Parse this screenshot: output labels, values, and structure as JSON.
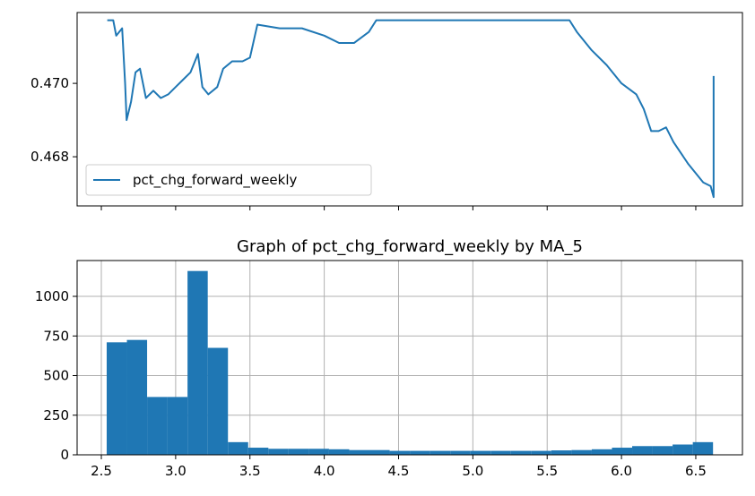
{
  "chart_data": [
    {
      "type": "line",
      "xlim": [
        2.337,
        6.814
      ],
      "ylim": [
        0.46666,
        0.47193
      ],
      "yticks": [
        {
          "value": 0.47,
          "label": "0.470"
        },
        0.468
      ],
      "legend": "lower left",
      "series": [
        {
          "name": "pct_chg_forward_weekly",
          "color": "#1f77b4",
          "x": [
            2.54,
            2.58,
            2.6,
            2.62,
            2.64,
            2.66,
            2.67,
            2.7,
            2.73,
            2.76,
            2.8,
            2.85,
            2.9,
            2.95,
            3.0,
            3.05,
            3.1,
            3.15,
            3.18,
            3.22,
            3.28,
            3.32,
            3.38,
            3.45,
            3.5,
            3.55,
            3.7,
            3.85,
            4.0,
            4.1,
            4.2,
            4.3,
            4.35,
            5.0,
            5.65,
            5.7,
            5.8,
            5.9,
            6.0,
            6.1,
            6.15,
            6.2,
            6.25,
            6.3,
            6.35,
            6.45,
            6.55,
            6.6,
            6.62,
            6.62
          ],
          "values": [
            0.47172,
            0.47172,
            0.4713,
            0.4714,
            0.4715,
            0.47,
            0.469,
            0.4695,
            0.4703,
            0.4704,
            0.4696,
            0.4698,
            0.4696,
            0.4697,
            0.4699,
            0.4701,
            0.4703,
            0.4708,
            0.4699,
            0.4697,
            0.4699,
            0.4704,
            0.4706,
            0.4706,
            0.4707,
            0.4716,
            0.4715,
            0.4715,
            0.4713,
            0.4711,
            0.4711,
            0.4714,
            0.47172,
            0.47172,
            0.47172,
            0.4714,
            0.4709,
            0.4705,
            0.47,
            0.4697,
            0.4693,
            0.4687,
            0.4687,
            0.4688,
            0.4684,
            0.4678,
            0.4673,
            0.4672,
            0.4669,
            0.4702
          ]
        }
      ]
    },
    {
      "type": "histogram",
      "title": "Graph of pct_chg_forward_weekly by MA_5",
      "color": "#1f77b4",
      "grid": true,
      "xlim": [
        2.337,
        6.814
      ],
      "ylim": [
        0,
        1226
      ],
      "xticks": [
        2.5,
        {
          "value": 3,
          "label": "3.0"
        },
        3.5,
        {
          "value": 4,
          "label": "4.0"
        },
        4.5,
        {
          "value": 5,
          "label": "5.0"
        },
        5.5,
        {
          "value": 6,
          "label": "6.0"
        },
        6.5
      ],
      "yticks": [
        0,
        250,
        500,
        750,
        1000
      ],
      "bins": [
        2.536,
        2.672,
        2.808,
        2.944,
        3.08,
        3.216,
        3.352,
        3.488,
        3.624,
        3.76,
        3.896,
        4.032,
        4.168,
        4.304,
        4.44,
        4.576,
        4.712,
        4.848,
        4.984,
        5.12,
        5.256,
        5.392,
        5.528,
        5.664,
        5.8,
        5.936,
        6.072,
        6.208,
        6.344,
        6.48,
        6.616
      ],
      "values": [
        710,
        725,
        365,
        365,
        1160,
        675,
        80,
        45,
        38,
        38,
        38,
        35,
        30,
        30,
        25,
        25,
        25,
        25,
        25,
        25,
        25,
        25,
        28,
        30,
        35,
        45,
        55,
        55,
        65,
        80
      ]
    }
  ]
}
